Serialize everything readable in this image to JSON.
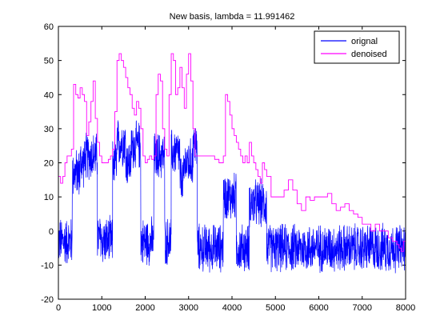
{
  "chart_data": {
    "type": "line",
    "title": "New basis, lambda = 11.991462",
    "xlabel": "",
    "ylabel": "",
    "xlim": [
      0,
      8000
    ],
    "ylim": [
      -20,
      60
    ],
    "x_ticks": [
      0,
      1000,
      2000,
      3000,
      4000,
      5000,
      6000,
      7000,
      8000
    ],
    "y_ticks": [
      -20,
      -10,
      0,
      10,
      20,
      30,
      40,
      50,
      60
    ],
    "grid": false,
    "legend_position": "top-right",
    "colors": {
      "orignal": "#0000ff",
      "denoised": "#ff00ff"
    },
    "series": [
      {
        "name": "orignal",
        "style": "noisy signal",
        "noise_amplitude": 4,
        "segments": [
          {
            "x_start": 0,
            "x_end": 320,
            "level": -3
          },
          {
            "x_start": 320,
            "x_end": 500,
            "level": 17
          },
          {
            "x_start": 500,
            "x_end": 620,
            "level": 20
          },
          {
            "x_start": 620,
            "x_end": 900,
            "level": 22
          },
          {
            "x_start": 900,
            "x_end": 1000,
            "level": -2
          },
          {
            "x_start": 1000,
            "x_end": 1250,
            "level": -3
          },
          {
            "x_start": 1250,
            "x_end": 1350,
            "level": 20
          },
          {
            "x_start": 1350,
            "x_end": 1550,
            "level": 26
          },
          {
            "x_start": 1550,
            "x_end": 1680,
            "level": 20
          },
          {
            "x_start": 1680,
            "x_end": 1900,
            "level": 25
          },
          {
            "x_start": 1900,
            "x_end": 2200,
            "level": -3
          },
          {
            "x_start": 2200,
            "x_end": 2450,
            "level": 22
          },
          {
            "x_start": 2450,
            "x_end": 2600,
            "level": -3
          },
          {
            "x_start": 2600,
            "x_end": 2800,
            "level": 23
          },
          {
            "x_start": 2800,
            "x_end": 2900,
            "level": 15
          },
          {
            "x_start": 2900,
            "x_end": 3100,
            "level": 20
          },
          {
            "x_start": 3100,
            "x_end": 3200,
            "level": 25
          },
          {
            "x_start": 3200,
            "x_end": 3800,
            "level": -5
          },
          {
            "x_start": 3800,
            "x_end": 4100,
            "level": 10
          },
          {
            "x_start": 4100,
            "x_end": 4400,
            "level": -5
          },
          {
            "x_start": 4400,
            "x_end": 4800,
            "level": 8
          },
          {
            "x_start": 4800,
            "x_end": 8000,
            "level": -5
          }
        ]
      },
      {
        "name": "denoised",
        "x": [
          0,
          50,
          100,
          150,
          200,
          250,
          300,
          350,
          400,
          450,
          500,
          550,
          600,
          650,
          700,
          750,
          800,
          850,
          900,
          950,
          1000,
          1050,
          1100,
          1150,
          1200,
          1250,
          1300,
          1350,
          1400,
          1450,
          1500,
          1550,
          1600,
          1650,
          1700,
          1750,
          1800,
          1850,
          1900,
          1950,
          2000,
          2050,
          2100,
          2150,
          2200,
          2250,
          2300,
          2350,
          2400,
          2450,
          2500,
          2550,
          2600,
          2650,
          2700,
          2750,
          2800,
          2850,
          2900,
          2950,
          3000,
          3050,
          3100,
          3150,
          3200,
          3300,
          3400,
          3500,
          3600,
          3700,
          3800,
          3850,
          3900,
          3950,
          4000,
          4050,
          4100,
          4150,
          4200,
          4250,
          4300,
          4350,
          4400,
          4450,
          4500,
          4550,
          4600,
          4650,
          4700,
          4750,
          4800,
          4900,
          5000,
          5100,
          5200,
          5300,
          5400,
          5500,
          5600,
          5700,
          5800,
          5900,
          6000,
          6100,
          6200,
          6300,
          6400,
          6500,
          6600,
          6700,
          6800,
          6900,
          7000,
          7100,
          7200,
          7300,
          7400,
          7500,
          7600,
          7700,
          7800,
          7850,
          7900,
          7950,
          8000
        ],
        "values": [
          16,
          14,
          16,
          20,
          22,
          22,
          24,
          43,
          40,
          39,
          42,
          40,
          38,
          28,
          32,
          38,
          44,
          33,
          26,
          22,
          20,
          20,
          20,
          21,
          22,
          24,
          35,
          50,
          52,
          50,
          48,
          45,
          42,
          40,
          36,
          34,
          38,
          36,
          30,
          22,
          20,
          21,
          22,
          21,
          22,
          40,
          46,
          44,
          30,
          24,
          22,
          40,
          52,
          50,
          40,
          42,
          48,
          42,
          36,
          46,
          52,
          44,
          30,
          22,
          22,
          22,
          22,
          22,
          21,
          20,
          22,
          40,
          38,
          34,
          30,
          28,
          26,
          24,
          22,
          20,
          22,
          20,
          26,
          22,
          20,
          18,
          16,
          14,
          20,
          18,
          16,
          10,
          10,
          10,
          12,
          15,
          12,
          8,
          6,
          10,
          9,
          10,
          10,
          10,
          11,
          8,
          6,
          7,
          8,
          6,
          5,
          4,
          2,
          2,
          0,
          2,
          0,
          0,
          -2,
          -3,
          -4,
          -5,
          -6,
          -3,
          -4
        ]
      }
    ]
  }
}
